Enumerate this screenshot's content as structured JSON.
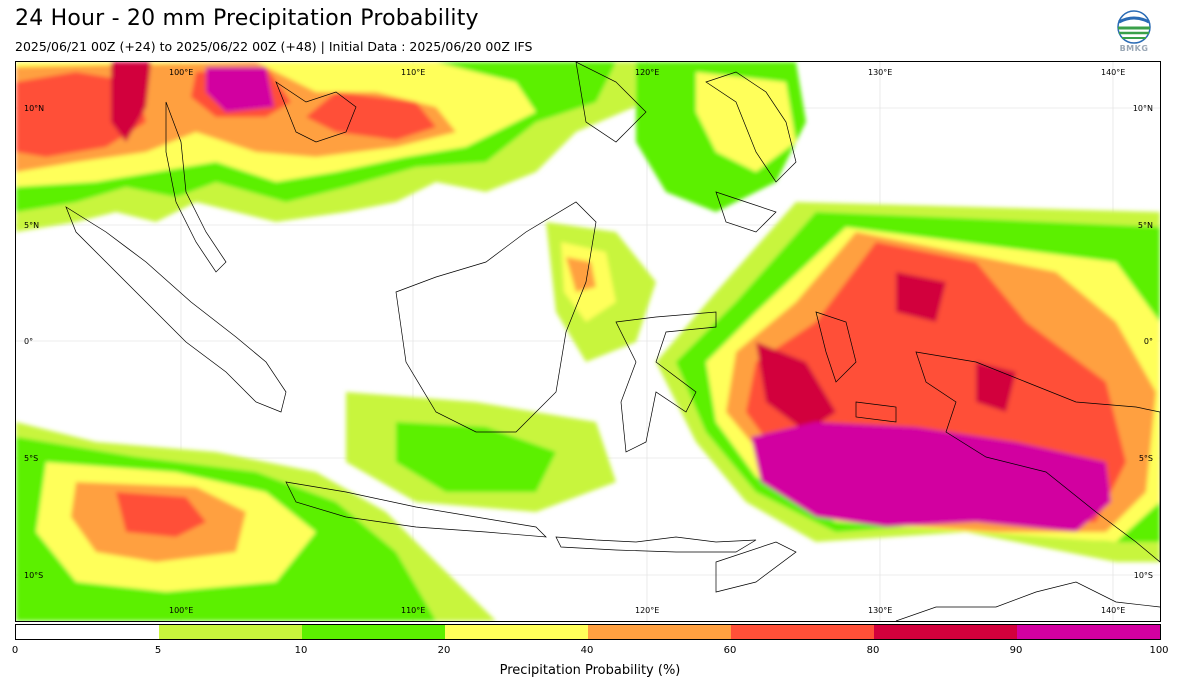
{
  "header": {
    "title": "24 Hour - 20 mm Precipitation Probability",
    "subtitle": "2025/06/21 00Z (+24) to 2025/06/22 00Z (+48) | Initial Data : 2025/06/20 00Z IFS",
    "logo_text": "BMKG"
  },
  "map": {
    "top_lon_labels": [
      "100°E",
      "110°E",
      "120°E",
      "130°E",
      "140°E"
    ],
    "bottom_lon_labels": [
      "100°E",
      "110°E",
      "120°E",
      "130°E",
      "140°E"
    ],
    "left_lat_labels": [
      "10°N",
      "5°N",
      "0°",
      "5°S",
      "10°S"
    ],
    "right_lat_labels": [
      "10°N",
      "5°N",
      "0°",
      "5°S",
      "10°S"
    ]
  },
  "legend": {
    "title": "Precipitation Probability (%)",
    "ticks": [
      "0",
      "5",
      "10",
      "20",
      "40",
      "60",
      "80",
      "90",
      "100"
    ],
    "colors": [
      "#ffffff",
      "#c8f53c",
      "#5cf000",
      "#ffff5a",
      "#ffa040",
      "#ff5038",
      "#d2003c",
      "#d200a0"
    ]
  }
}
